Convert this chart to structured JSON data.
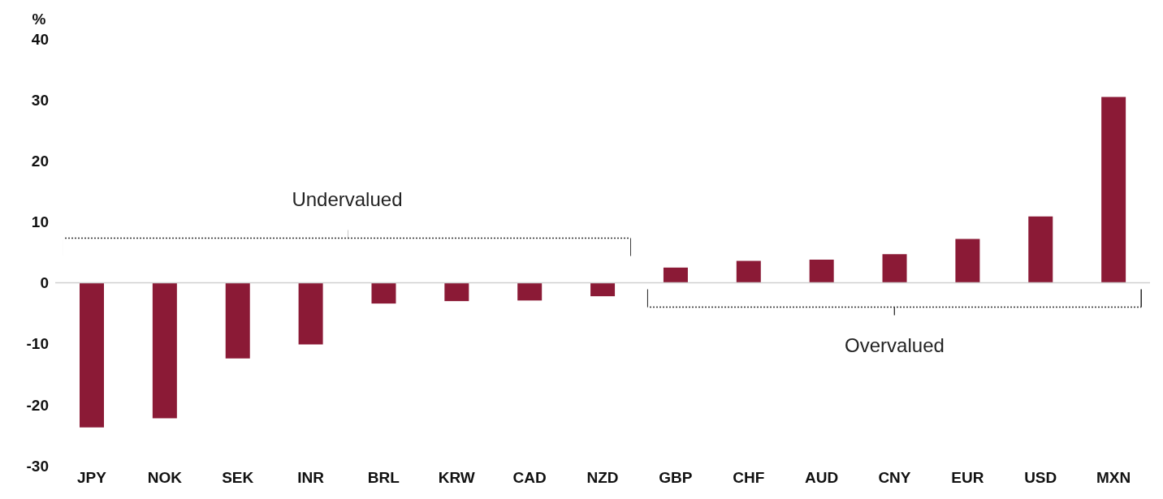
{
  "chart_data": {
    "type": "bar",
    "ylabel": "%",
    "categories": [
      "JPY",
      "NOK",
      "SEK",
      "INR",
      "BRL",
      "KRW",
      "CAD",
      "NZD",
      "GBP",
      "CHF",
      "AUD",
      "CNY",
      "EUR",
      "USD",
      "MXN"
    ],
    "values": [
      -23.7,
      -22.2,
      -12.4,
      -10.1,
      -3.4,
      -3.0,
      -2.9,
      -2.2,
      2.5,
      3.6,
      3.8,
      4.7,
      7.2,
      10.9,
      30.5
    ],
    "color": "#8b1a36",
    "ylim": [
      -30,
      40
    ],
    "yticks": [
      -30,
      -20,
      -10,
      0,
      10,
      20,
      30,
      40
    ],
    "annotations": [
      "Undervalued",
      "Overvalued"
    ]
  }
}
